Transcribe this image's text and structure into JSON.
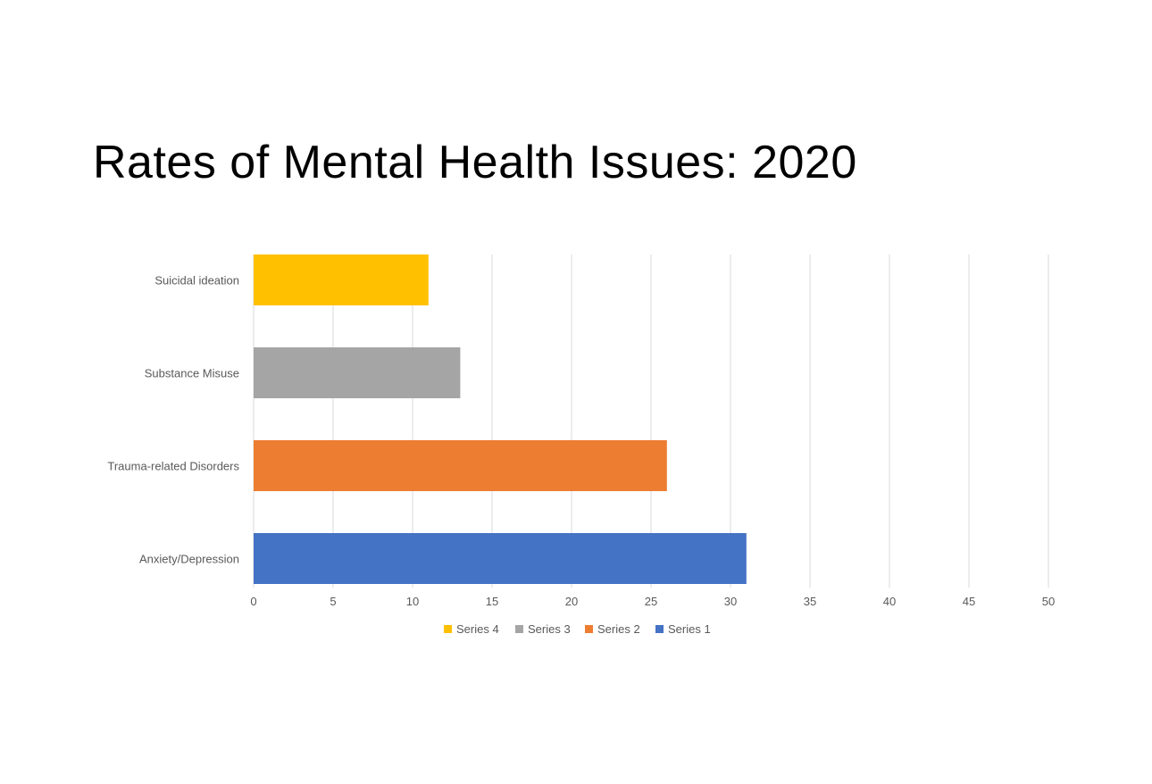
{
  "chart_data": {
    "type": "bar",
    "orientation": "horizontal",
    "title": "Rates of Mental Health Issues: 2020",
    "categories": [
      "Anxiety/Depression",
      "Trauma-related Disorders",
      "Substance Misuse",
      "Suicidal ideation"
    ],
    "series": [
      {
        "name": "Series 1",
        "category": "Anxiety/Depression",
        "value": 31,
        "color": "#4472c4"
      },
      {
        "name": "Series 2",
        "category": "Trauma-related Disorders",
        "value": 26,
        "color": "#ed7d31"
      },
      {
        "name": "Series 3",
        "category": "Substance Misuse",
        "value": 13,
        "color": "#a5a5a5"
      },
      {
        "name": "Series 4",
        "category": "Suicidal ideation",
        "value": 11,
        "color": "#ffc000"
      }
    ],
    "xlim": [
      0,
      50
    ],
    "xticks": [
      "0",
      "5",
      "10",
      "15",
      "20",
      "25",
      "30",
      "35",
      "40",
      "45",
      "50"
    ],
    "grid": true,
    "legend": "bottom",
    "legend_order": [
      "Series 4",
      "Series 3",
      "Series 2",
      "Series 1"
    ]
  }
}
